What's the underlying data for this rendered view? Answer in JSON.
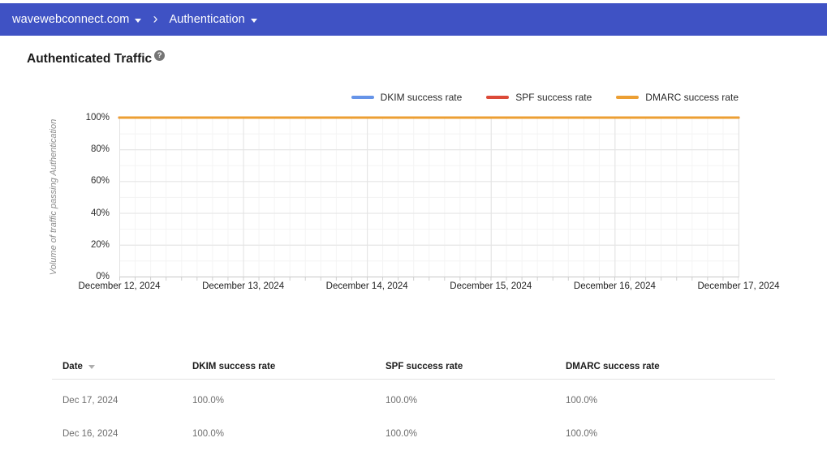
{
  "colors": {
    "topbar_bg": "#3f52c4",
    "dkim": "#6694e8",
    "spf": "#dc4a38",
    "dmarc": "#ec9f33",
    "grid_major": "#e3e3e3",
    "axis_line": "#c9c9c9"
  },
  "topbar": {
    "domain": "wavewebconnect.com",
    "separator": "›",
    "section": "Authentication"
  },
  "page": {
    "title": "Authenticated Traffic",
    "help_icon": "?"
  },
  "chart_data": {
    "type": "line",
    "title": "Authenticated Traffic",
    "x": [
      "December 12, 2024",
      "December 13, 2024",
      "December 14, 2024",
      "December 15, 2024",
      "December 16, 2024",
      "December 17, 2024"
    ],
    "series": [
      {
        "name": "DKIM success rate",
        "color": "#6694e8",
        "values": [
          100,
          100,
          100,
          100,
          100,
          100
        ]
      },
      {
        "name": "SPF success rate",
        "color": "#dc4a38",
        "values": [
          100,
          100,
          100,
          100,
          100,
          100
        ]
      },
      {
        "name": "DMARC success rate",
        "color": "#ec9f33",
        "values": [
          100,
          100,
          100,
          100,
          100,
          100
        ]
      }
    ],
    "ylabel": "Volume of traffic passing Authentication",
    "yticks": [
      "100%",
      "80%",
      "60%",
      "40%",
      "20%",
      "0%"
    ],
    "ylim": [
      0,
      100
    ],
    "grid": true,
    "legend_position": "top-right"
  },
  "table": {
    "columns": [
      "Date",
      "DKIM success rate",
      "SPF success rate",
      "DMARC success rate"
    ],
    "sorted_column": "Date",
    "sort_direction": "desc",
    "rows": [
      [
        "Dec 17, 2024",
        "100.0%",
        "100.0%",
        "100.0%"
      ],
      [
        "Dec 16, 2024",
        "100.0%",
        "100.0%",
        "100.0%"
      ]
    ]
  }
}
